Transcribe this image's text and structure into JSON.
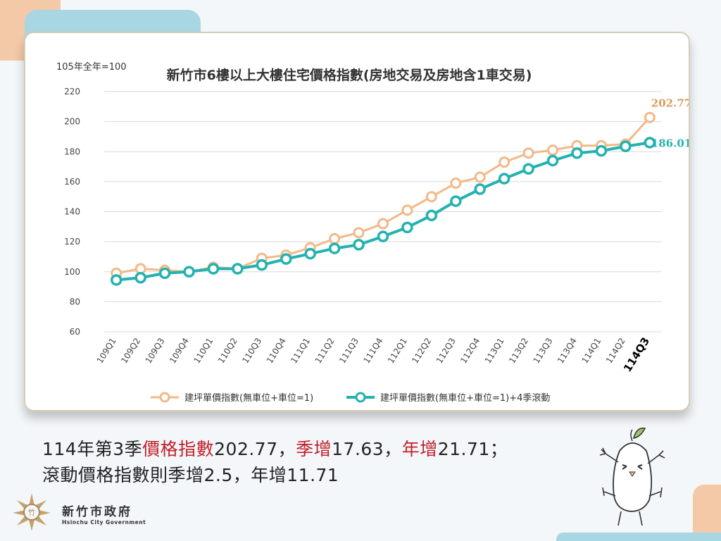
{
  "chart_data": {
    "type": "line",
    "title": "新竹市6樓以上大樓住宅價格指數(房地交易及房地含1車交易)",
    "ylabel": "105年全年=100",
    "ylim": [
      60,
      220
    ],
    "yticks": [
      60,
      80,
      100,
      120,
      140,
      160,
      180,
      200,
      220
    ],
    "grid": true,
    "legend": "bottom",
    "categories": [
      "109Q1",
      "109Q2",
      "109Q3",
      "109Q4",
      "110Q1",
      "110Q2",
      "110Q3",
      "110Q4",
      "111Q1",
      "111Q2",
      "111Q3",
      "111Q4",
      "112Q1",
      "112Q2",
      "112Q3",
      "112Q4",
      "113Q1",
      "113Q2",
      "113Q3",
      "113Q4",
      "114Q1",
      "114Q2",
      "114Q3"
    ],
    "highlight_category": "114Q3",
    "series": [
      {
        "name": "建坪單價指數(無車位+車位=1)",
        "color": "#f2b989",
        "values": [
          99,
          102,
          101,
          100,
          103,
          102,
          109,
          111,
          116,
          122,
          126,
          132,
          141,
          150,
          159,
          163,
          173,
          179,
          181,
          184,
          184,
          185,
          202.77
        ],
        "end_label": "202.77",
        "end_label_color": "#dc9b57"
      },
      {
        "name": "建坪單價指數(無車位+車位=1)+4季滾動",
        "color": "#23b2b0",
        "values": [
          94.5,
          96,
          99,
          100,
          102,
          102,
          104.5,
          108.5,
          112,
          115.5,
          118,
          123.5,
          129.5,
          137.5,
          147,
          155,
          162,
          168.5,
          174,
          179,
          180.5,
          183.51,
          186.01
        ],
        "end_label": "186.01",
        "end_label_color": "#23b2b0"
      }
    ]
  },
  "summary": {
    "line1": [
      {
        "text": "114年第3季",
        "red": false
      },
      {
        "text": "價格指數",
        "red": true
      },
      {
        "text": "202.77，",
        "red": false
      },
      {
        "text": "季增",
        "red": true
      },
      {
        "text": "17.63，",
        "red": false
      },
      {
        "text": "年增",
        "red": true
      },
      {
        "text": "21.71；",
        "red": false
      }
    ],
    "line2": "滾動價格指數則季增2.5，年增11.71"
  },
  "footer": {
    "org_name": "新竹市政府",
    "org_name_en": "Hsinchu City Government"
  }
}
